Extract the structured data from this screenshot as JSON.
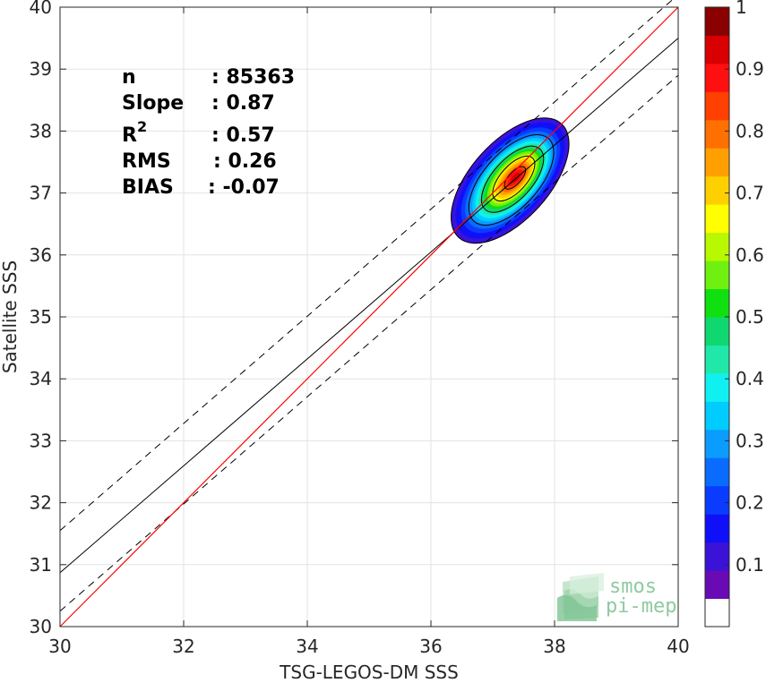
{
  "chart_data": {
    "type": "scatter",
    "xlabel": "TSG-LEGOS-DM SSS",
    "ylabel": "Satellite SSS",
    "xlim": [
      30,
      40
    ],
    "ylim": [
      30,
      40
    ],
    "x_ticks": [
      "30",
      "32",
      "34",
      "36",
      "38",
      "40"
    ],
    "y_ticks": [
      "30",
      "31",
      "32",
      "33",
      "34",
      "35",
      "36",
      "37",
      "38",
      "39",
      "40"
    ],
    "grid": true,
    "stats": {
      "n_label": "n",
      "n_value": ": 85363",
      "slope_label": "Slope",
      "slope_value": ": 0.87",
      "r2_label": "R",
      "r2_sup": "2",
      "r2_value": ": 0.57",
      "rms_label": "RMS",
      "rms_value": ": 0.26",
      "bias_label": "BIAS",
      "bias_value": ": -0.07"
    },
    "identity_line": {
      "x": [
        30,
        40
      ],
      "y": [
        30,
        40
      ],
      "color": "#ff0000"
    },
    "regression_line": {
      "slope": 0.87,
      "x": [
        30,
        40
      ],
      "y": [
        30.87,
        39.5
      ],
      "color": "#000000"
    },
    "regression_bounds": [
      {
        "x": [
          30,
          40
        ],
        "y": [
          31.55,
          40.2
        ],
        "style": "dashed"
      },
      {
        "x": [
          30,
          40
        ],
        "y": [
          30.25,
          38.9
        ],
        "style": "dashed"
      }
    ],
    "density_contours": {
      "center": [
        37.28,
        37.2
      ],
      "peak": [
        37.37,
        37.25
      ],
      "axis_angle_deg": 48,
      "levels": [
        0.05,
        0.1,
        0.15,
        0.2,
        0.25,
        0.3,
        0.35,
        0.4,
        0.45,
        0.5,
        0.55,
        0.6,
        0.65,
        0.7,
        0.75,
        0.8,
        0.85,
        0.9,
        0.95
      ],
      "semi_major": [
        1.24,
        1.16,
        1.05,
        0.97,
        0.9,
        0.83,
        0.77,
        0.71,
        0.66,
        0.6,
        0.55,
        0.5,
        0.45,
        0.4,
        0.34,
        0.29,
        0.23,
        0.17,
        0.1
      ],
      "semi_minor": [
        0.63,
        0.57,
        0.52,
        0.48,
        0.44,
        0.41,
        0.38,
        0.35,
        0.32,
        0.29,
        0.27,
        0.24,
        0.21,
        0.19,
        0.16,
        0.13,
        0.1,
        0.08,
        0.05
      ]
    },
    "colorbar": {
      "min": 0,
      "max": 1,
      "ticks": [
        "0.1",
        "0.2",
        "0.3",
        "0.4",
        "0.5",
        "0.6",
        "0.7",
        "0.8",
        "0.9",
        "1"
      ],
      "tick_values": [
        0.1,
        0.2,
        0.3,
        0.4,
        0.5,
        0.6,
        0.7,
        0.8,
        0.9,
        1.0
      ],
      "colors": [
        "#ffffff",
        "#6a0ab5",
        "#3b12d8",
        "#1010f8",
        "#0a3cff",
        "#0a6cff",
        "#0a9cff",
        "#00ccff",
        "#10f0f0",
        "#20e8a8",
        "#10d870",
        "#10e010",
        "#70f010",
        "#b8f800",
        "#ffff00",
        "#ffd000",
        "#ffa000",
        "#ff7000",
        "#ff4000",
        "#ff1010",
        "#d80000",
        "#8b0000"
      ]
    }
  },
  "logo": {
    "line1": "smos",
    "line2": "pi-mep"
  }
}
